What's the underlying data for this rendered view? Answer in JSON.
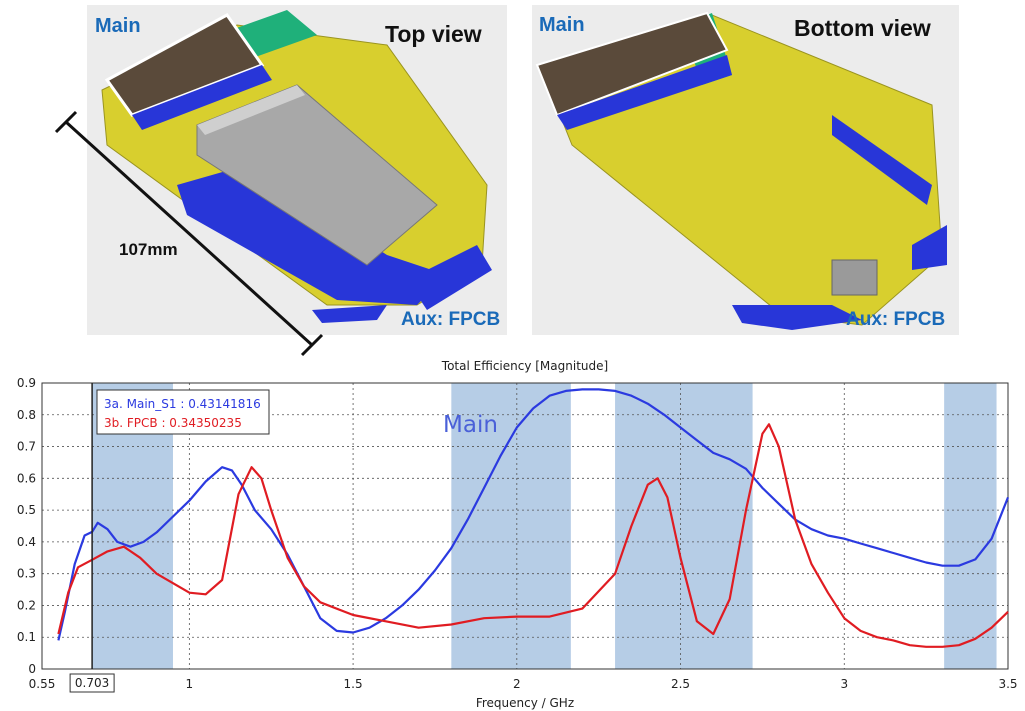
{
  "images": {
    "top": {
      "title": "Top view",
      "main_label": "Main",
      "aux_label": "Aux: FPCB"
    },
    "bottom": {
      "title": "Bottom view",
      "main_label": "Main",
      "aux_label": "Aux: FPCB"
    },
    "dimension_label": "107mm"
  },
  "chart_data": {
    "type": "line",
    "title": "Total Efficiency [Magnitude]",
    "xlabel": "Frequency / GHz",
    "ylabel": "",
    "xlim": [
      0.55,
      3.5
    ],
    "ylim": [
      0,
      0.9
    ],
    "xticks": [
      "0.55",
      "1",
      "1.5",
      "2",
      "2.5",
      "3",
      "3.5"
    ],
    "yticks": [
      "0",
      "0.1",
      "0.2",
      "0.3",
      "0.4",
      "0.5",
      "0.6",
      "0.7",
      "0.8",
      "0.9"
    ],
    "grid": true,
    "annotation": "Main",
    "marker": {
      "x": 0.703,
      "label": "0.703"
    },
    "legend": {
      "placement": "top-left",
      "entries": [
        "3a. Main_S1 : 0.43141816",
        "3b. FPCB : 0.34350235"
      ]
    },
    "bands": [
      [
        0.703,
        0.95
      ],
      [
        1.8,
        2.165
      ],
      [
        2.3,
        2.72
      ],
      [
        3.305,
        3.465
      ]
    ],
    "series": [
      {
        "name": "3a. Main_S1",
        "color": "#2b3ae0",
        "points": [
          [
            0.6,
            0.09
          ],
          [
            0.62,
            0.18
          ],
          [
            0.65,
            0.33
          ],
          [
            0.68,
            0.42
          ],
          [
            0.703,
            0.4314
          ],
          [
            0.72,
            0.46
          ],
          [
            0.75,
            0.44
          ],
          [
            0.78,
            0.4
          ],
          [
            0.82,
            0.385
          ],
          [
            0.86,
            0.4
          ],
          [
            0.9,
            0.43
          ],
          [
            0.95,
            0.48
          ],
          [
            1.0,
            0.53
          ],
          [
            1.05,
            0.59
          ],
          [
            1.1,
            0.635
          ],
          [
            1.13,
            0.625
          ],
          [
            1.16,
            0.58
          ],
          [
            1.2,
            0.5
          ],
          [
            1.25,
            0.44
          ],
          [
            1.3,
            0.36
          ],
          [
            1.35,
            0.26
          ],
          [
            1.4,
            0.16
          ],
          [
            1.45,
            0.12
          ],
          [
            1.5,
            0.115
          ],
          [
            1.55,
            0.13
          ],
          [
            1.6,
            0.16
          ],
          [
            1.65,
            0.2
          ],
          [
            1.7,
            0.25
          ],
          [
            1.75,
            0.31
          ],
          [
            1.8,
            0.38
          ],
          [
            1.85,
            0.47
          ],
          [
            1.9,
            0.57
          ],
          [
            1.95,
            0.67
          ],
          [
            2.0,
            0.76
          ],
          [
            2.05,
            0.82
          ],
          [
            2.1,
            0.86
          ],
          [
            2.15,
            0.875
          ],
          [
            2.2,
            0.88
          ],
          [
            2.25,
            0.88
          ],
          [
            2.3,
            0.875
          ],
          [
            2.35,
            0.86
          ],
          [
            2.4,
            0.835
          ],
          [
            2.45,
            0.8
          ],
          [
            2.5,
            0.76
          ],
          [
            2.55,
            0.72
          ],
          [
            2.6,
            0.68
          ],
          [
            2.65,
            0.66
          ],
          [
            2.7,
            0.63
          ],
          [
            2.75,
            0.57
          ],
          [
            2.8,
            0.52
          ],
          [
            2.85,
            0.47
          ],
          [
            2.9,
            0.44
          ],
          [
            2.95,
            0.42
          ],
          [
            3.0,
            0.41
          ],
          [
            3.05,
            0.395
          ],
          [
            3.1,
            0.38
          ],
          [
            3.15,
            0.365
          ],
          [
            3.2,
            0.35
          ],
          [
            3.25,
            0.335
          ],
          [
            3.3,
            0.325
          ],
          [
            3.35,
            0.325
          ],
          [
            3.4,
            0.345
          ],
          [
            3.45,
            0.41
          ],
          [
            3.5,
            0.54
          ]
        ]
      },
      {
        "name": "3b. FPCB",
        "color": "#e01c22",
        "points": [
          [
            0.6,
            0.11
          ],
          [
            0.63,
            0.24
          ],
          [
            0.66,
            0.32
          ],
          [
            0.703,
            0.3435
          ],
          [
            0.75,
            0.37
          ],
          [
            0.8,
            0.385
          ],
          [
            0.85,
            0.35
          ],
          [
            0.9,
            0.3
          ],
          [
            0.95,
            0.27
          ],
          [
            1.0,
            0.24
          ],
          [
            1.05,
            0.235
          ],
          [
            1.1,
            0.28
          ],
          [
            1.15,
            0.55
          ],
          [
            1.19,
            0.635
          ],
          [
            1.22,
            0.6
          ],
          [
            1.25,
            0.5
          ],
          [
            1.3,
            0.35
          ],
          [
            1.35,
            0.26
          ],
          [
            1.4,
            0.21
          ],
          [
            1.5,
            0.17
          ],
          [
            1.6,
            0.15
          ],
          [
            1.7,
            0.13
          ],
          [
            1.8,
            0.14
          ],
          [
            1.9,
            0.16
          ],
          [
            2.0,
            0.165
          ],
          [
            2.1,
            0.165
          ],
          [
            2.2,
            0.19
          ],
          [
            2.3,
            0.3
          ],
          [
            2.35,
            0.45
          ],
          [
            2.4,
            0.58
          ],
          [
            2.43,
            0.6
          ],
          [
            2.46,
            0.54
          ],
          [
            2.5,
            0.35
          ],
          [
            2.55,
            0.15
          ],
          [
            2.6,
            0.11
          ],
          [
            2.65,
            0.22
          ],
          [
            2.7,
            0.5
          ],
          [
            2.75,
            0.74
          ],
          [
            2.77,
            0.77
          ],
          [
            2.8,
            0.7
          ],
          [
            2.85,
            0.47
          ],
          [
            2.9,
            0.33
          ],
          [
            2.95,
            0.24
          ],
          [
            3.0,
            0.16
          ],
          [
            3.05,
            0.12
          ],
          [
            3.1,
            0.1
          ],
          [
            3.15,
            0.09
          ],
          [
            3.2,
            0.075
          ],
          [
            3.25,
            0.07
          ],
          [
            3.3,
            0.07
          ],
          [
            3.35,
            0.075
          ],
          [
            3.4,
            0.095
          ],
          [
            3.45,
            0.13
          ],
          [
            3.5,
            0.18
          ]
        ]
      }
    ]
  }
}
